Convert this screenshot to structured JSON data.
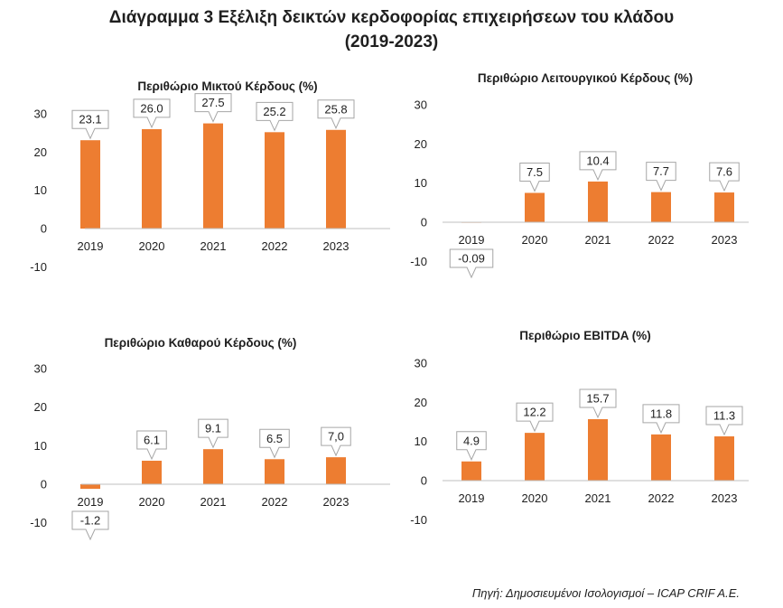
{
  "page": {
    "title_line1": "Διάγραμμα 3 Εξέλιξη δεικτών κερδοφορίας επιχειρήσεων του κλάδου",
    "title_line2": "(2019-2023)",
    "source": "Πηγή: Δημοσιευμένοι Ισολογισμοί – ICAP CRIF A.E."
  },
  "colors": {
    "bar": "#ED7D31",
    "axis": "#bfbfbf",
    "callout_border": "#a6a6a6"
  },
  "chart_data": [
    {
      "type": "bar",
      "title": "Περιθώριο Μικτού Κέρδους (%)",
      "categories": [
        "2019",
        "2020",
        "2021",
        "2022",
        "2023"
      ],
      "values": [
        23.1,
        26.0,
        27.5,
        25.2,
        25.8
      ],
      "data_labels": [
        "23.1",
        "26.0",
        "27.5",
        "25.2",
        "25.8"
      ],
      "yticks": [
        "30",
        "20",
        "10",
        "0",
        "-10"
      ],
      "ylim": [
        -10,
        30
      ],
      "grid": false,
      "legend": "none"
    },
    {
      "type": "bar",
      "title": "Περιθώριο Λειτουργικού Κέρδους (%)",
      "categories": [
        "2019",
        "2020",
        "2021",
        "2022",
        "2023"
      ],
      "values": [
        -0.09,
        7.5,
        10.4,
        7.7,
        7.6
      ],
      "data_labels": [
        "-0.09",
        "7.5",
        "10.4",
        "7.7",
        "7.6"
      ],
      "yticks": [
        "30",
        "20",
        "10",
        "0",
        "-10"
      ],
      "ylim": [
        -10,
        30
      ],
      "grid": false,
      "legend": "none"
    },
    {
      "type": "bar",
      "title": "Περιθώριο Καθαρού Κέρδους (%)",
      "categories": [
        "2019",
        "2020",
        "2021",
        "2022",
        "2023"
      ],
      "values": [
        -1.2,
        6.1,
        9.1,
        6.5,
        7.0
      ],
      "data_labels": [
        "-1.2",
        "6.1",
        "9.1",
        "6.5",
        "7,0"
      ],
      "yticks": [
        "30",
        "20",
        "10",
        "0",
        "-10"
      ],
      "ylim": [
        -10,
        30
      ],
      "grid": false,
      "legend": "none"
    },
    {
      "type": "bar",
      "title": "Περιθώριο EBITDA (%)",
      "categories": [
        "2019",
        "2020",
        "2021",
        "2022",
        "2023"
      ],
      "values": [
        4.9,
        12.2,
        15.7,
        11.8,
        11.3
      ],
      "data_labels": [
        "4.9",
        "12.2",
        "15.7",
        "11.8",
        "11.3"
      ],
      "yticks": [
        "30",
        "20",
        "10",
        "0",
        "-10"
      ],
      "ylim": [
        -10,
        30
      ],
      "grid": false,
      "legend": "none"
    }
  ]
}
